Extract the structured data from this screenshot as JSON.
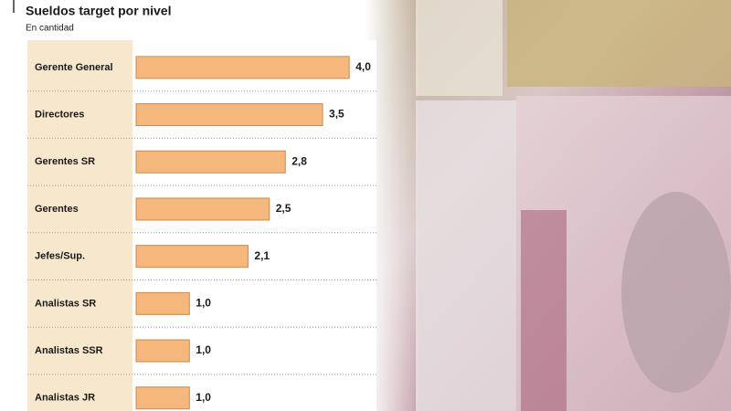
{
  "chart_data": {
    "type": "bar",
    "orientation": "horizontal",
    "title": "Sueldos target por nivel",
    "subtitle": "En cantidad",
    "categories": [
      "Gerente General",
      "Directores",
      "Gerentes SR",
      "Gerentes",
      "Jefes/Sup.",
      "Analistas SR",
      "Analistas SSR",
      "Analistas JR"
    ],
    "values": [
      4.0,
      3.5,
      2.8,
      2.5,
      2.1,
      1.0,
      1.0,
      1.0
    ],
    "value_labels": [
      "4,0",
      "3,5",
      "2,8",
      "2,5",
      "2,1",
      "1,0",
      "1,0",
      "1,0"
    ],
    "color": "#f6b77c"
  }
}
